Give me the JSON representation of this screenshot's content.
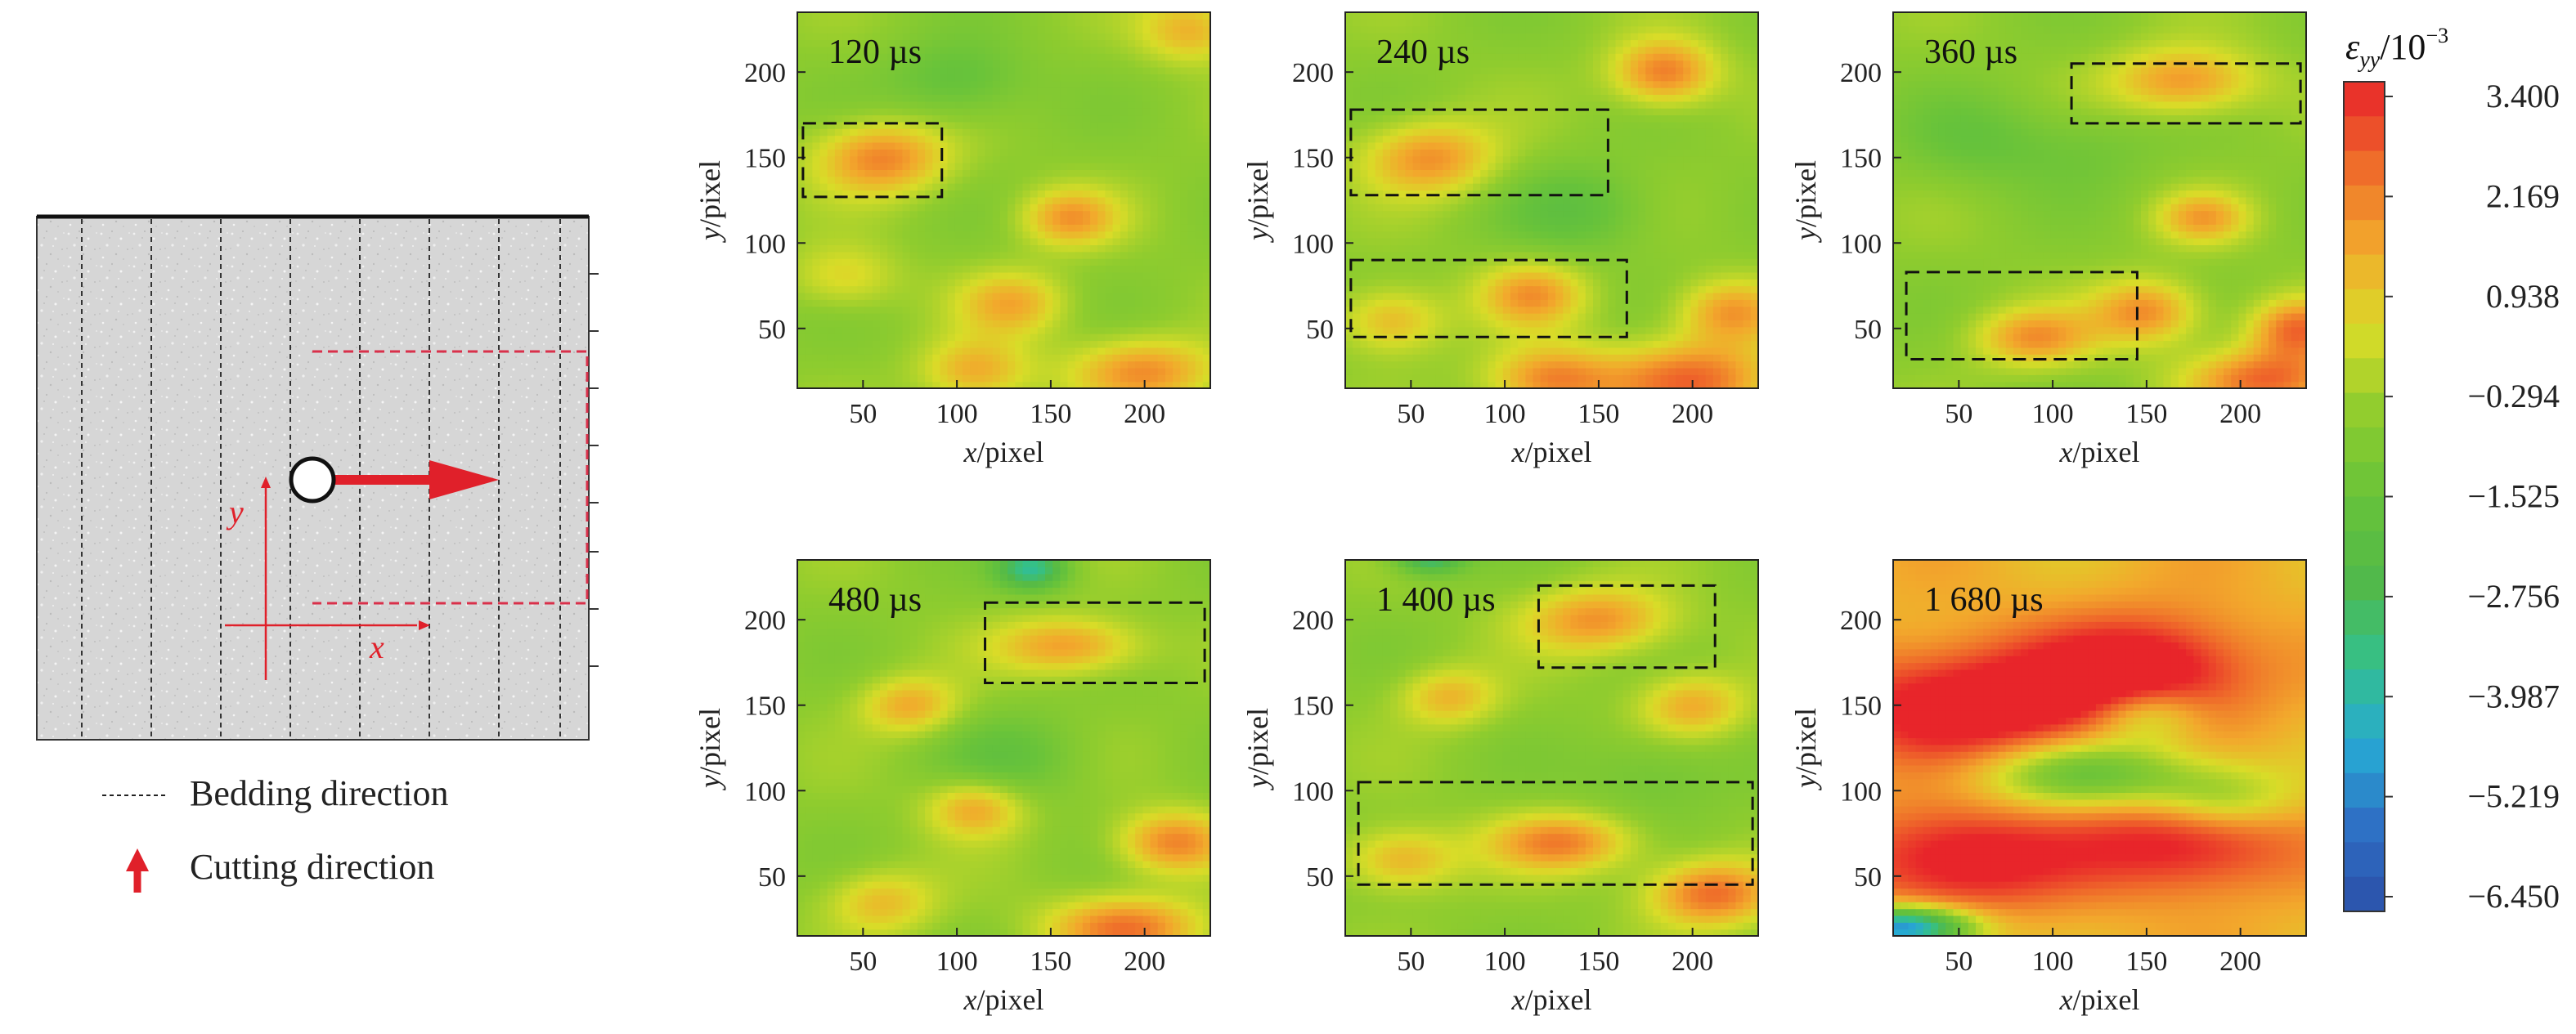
{
  "schematic": {
    "legend": {
      "bedding_label": "Bedding direction",
      "cutting_label": "Cutting direction"
    },
    "axis_x_label": "x",
    "axis_y_label": "y",
    "colors": {
      "accent": "#e0202a",
      "grey_fill": "#d8d8d8",
      "dashed_box": "#d9304a"
    }
  },
  "chart_data": [
    {
      "type": "heatmap",
      "annotation": "120 µs",
      "xlabel": "x/pixel",
      "ylabel": "y/pixel",
      "xlim": [
        15,
        235
      ],
      "ylim": [
        15,
        235
      ],
      "xticks": [
        50,
        100,
        150,
        200
      ],
      "yticks": [
        50,
        100,
        150,
        200
      ],
      "highlight_boxes": [
        [
          18,
          92,
          127,
          170
        ]
      ]
    },
    {
      "type": "heatmap",
      "annotation": "240 µs",
      "xlabel": "x/pixel",
      "ylabel": "y/pixel",
      "xlim": [
        15,
        235
      ],
      "ylim": [
        15,
        235
      ],
      "xticks": [
        50,
        100,
        150,
        200
      ],
      "yticks": [
        50,
        100,
        150,
        200
      ],
      "highlight_boxes": [
        [
          18,
          155,
          128,
          178
        ],
        [
          18,
          165,
          45,
          90
        ]
      ]
    },
    {
      "type": "heatmap",
      "annotation": "360 µs",
      "xlabel": "x/pixel",
      "ylabel": "y/pixel",
      "xlim": [
        15,
        235
      ],
      "ylim": [
        15,
        235
      ],
      "xticks": [
        50,
        100,
        150,
        200
      ],
      "yticks": [
        50,
        100,
        150,
        200
      ],
      "highlight_boxes": [
        [
          110,
          232,
          170,
          205
        ],
        [
          22,
          145,
          32,
          83
        ]
      ]
    },
    {
      "type": "heatmap",
      "annotation": "480 µs",
      "xlabel": "x/pixel",
      "ylabel": "y/pixel",
      "xlim": [
        15,
        235
      ],
      "ylim": [
        15,
        235
      ],
      "xticks": [
        50,
        100,
        150,
        200
      ],
      "yticks": [
        50,
        100,
        150,
        200
      ],
      "highlight_boxes": [
        [
          115,
          232,
          163,
          210
        ]
      ]
    },
    {
      "type": "heatmap",
      "annotation": "1 400 µs",
      "xlabel": "x/pixel",
      "ylabel": "y/pixel",
      "xlim": [
        15,
        235
      ],
      "ylim": [
        15,
        235
      ],
      "xticks": [
        50,
        100,
        150,
        200
      ],
      "yticks": [
        50,
        100,
        150,
        200
      ],
      "highlight_boxes": [
        [
          118,
          212,
          172,
          220
        ],
        [
          22,
          232,
          45,
          105
        ]
      ]
    },
    {
      "type": "heatmap",
      "annotation": "1 680 µs",
      "xlabel": "x/pixel",
      "ylabel": "y/pixel",
      "xlim": [
        15,
        235
      ],
      "ylim": [
        15,
        235
      ],
      "xticks": [
        50,
        100,
        150,
        200
      ],
      "yticks": [
        50,
        100,
        150,
        200
      ],
      "highlight_boxes": []
    }
  ],
  "colorbar": {
    "label_symbol": "ε",
    "label_subscript": "yy",
    "label_unit": "/10",
    "label_exponent": "−3",
    "min": -6.45,
    "max": 3.4,
    "tick_labels": [
      "3.400",
      "2.169",
      "0.938",
      "−0.294",
      "−1.525",
      "−2.756",
      "−3.987",
      "−5.219",
      "−6.450"
    ],
    "colors": [
      "#2b4fa8",
      "#2e6fc4",
      "#27a9d4",
      "#34c08a",
      "#52b948",
      "#68c33a",
      "#8fcc2e",
      "#d9dc28",
      "#f2a92c",
      "#ef6a2a",
      "#e8252a"
    ]
  }
}
